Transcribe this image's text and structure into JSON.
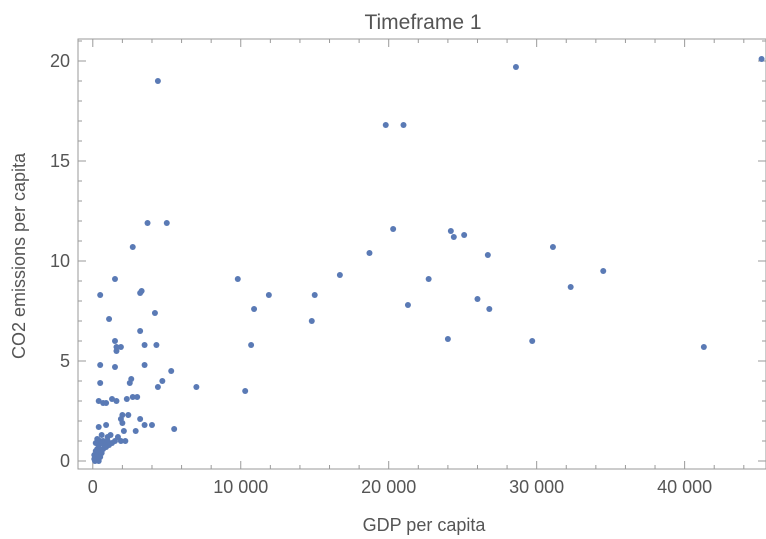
{
  "chart_data": {
    "type": "scatter",
    "title": "Timeframe 1",
    "xlabel": "GDP per capita",
    "ylabel": "CO2 emissions per capita",
    "xlim": [
      -1000,
      45500
    ],
    "ylim": [
      -0.4,
      21.1
    ],
    "x_ticks": [
      0,
      10000,
      20000,
      30000,
      40000
    ],
    "x_tick_labels": [
      "0",
      "10 000",
      "20 000",
      "30 000",
      "40 000"
    ],
    "y_ticks": [
      0,
      5,
      10,
      15,
      20
    ],
    "y_tick_labels": [
      "0",
      "5",
      "10",
      "15",
      "20"
    ],
    "grid": false,
    "marker_color": "#5a7ab5",
    "series": [
      {
        "points": [
          [
            4400,
            19.0
          ],
          [
            28600,
            19.7
          ],
          [
            45200,
            20.1
          ],
          [
            19800,
            16.8
          ],
          [
            21000,
            16.8
          ],
          [
            3700,
            11.9
          ],
          [
            5000,
            11.9
          ],
          [
            20300,
            11.6
          ],
          [
            24200,
            11.5
          ],
          [
            24400,
            11.2
          ],
          [
            25100,
            11.3
          ],
          [
            2700,
            10.7
          ],
          [
            31100,
            10.7
          ],
          [
            18700,
            10.4
          ],
          [
            26700,
            10.3
          ],
          [
            34500,
            9.5
          ],
          [
            16700,
            9.3
          ],
          [
            1500,
            9.1
          ],
          [
            9800,
            9.1
          ],
          [
            22700,
            9.1
          ],
          [
            32300,
            8.7
          ],
          [
            3300,
            8.5
          ],
          [
            3200,
            8.4
          ],
          [
            500,
            8.3
          ],
          [
            11900,
            8.3
          ],
          [
            15000,
            8.3
          ],
          [
            26000,
            8.1
          ],
          [
            21300,
            7.8
          ],
          [
            10900,
            7.6
          ],
          [
            26800,
            7.6
          ],
          [
            4200,
            7.4
          ],
          [
            1100,
            7.1
          ],
          [
            14800,
            7.0
          ],
          [
            3200,
            6.5
          ],
          [
            24000,
            6.1
          ],
          [
            29700,
            6.0
          ],
          [
            1500,
            6.0
          ],
          [
            1600,
            5.7
          ],
          [
            1900,
            5.7
          ],
          [
            10700,
            5.8
          ],
          [
            3500,
            5.8
          ],
          [
            4300,
            5.8
          ],
          [
            41300,
            5.7
          ],
          [
            1600,
            5.5
          ],
          [
            500,
            4.8
          ],
          [
            1500,
            4.7
          ],
          [
            3500,
            4.8
          ],
          [
            5300,
            4.5
          ],
          [
            2600,
            4.1
          ],
          [
            4700,
            4.0
          ],
          [
            2500,
            3.9
          ],
          [
            500,
            3.9
          ],
          [
            4400,
            3.7
          ],
          [
            7000,
            3.7
          ],
          [
            10300,
            3.5
          ],
          [
            3000,
            3.2
          ],
          [
            2700,
            3.2
          ],
          [
            2300,
            3.1
          ],
          [
            1600,
            3.0
          ],
          [
            1300,
            3.1
          ],
          [
            400,
            3.0
          ],
          [
            900,
            2.9
          ],
          [
            700,
            2.9
          ],
          [
            2000,
            2.3
          ],
          [
            2400,
            2.3
          ],
          [
            1900,
            2.1
          ],
          [
            3200,
            2.1
          ],
          [
            2000,
            1.9
          ],
          [
            3500,
            1.8
          ],
          [
            4000,
            1.8
          ],
          [
            5500,
            1.6
          ],
          [
            900,
            1.8
          ],
          [
            400,
            1.7
          ],
          [
            2100,
            1.5
          ],
          [
            2900,
            1.5
          ],
          [
            600,
            1.3
          ],
          [
            1000,
            1.2
          ],
          [
            1200,
            1.3
          ],
          [
            1700,
            1.2
          ],
          [
            1500,
            1.0
          ],
          [
            1900,
            1.0
          ],
          [
            2200,
            1.0
          ],
          [
            300,
            1.1
          ],
          [
            500,
            1.0
          ],
          [
            700,
            1.0
          ],
          [
            1000,
            1.0
          ],
          [
            1300,
            0.9
          ],
          [
            200,
            0.9
          ],
          [
            400,
            0.8
          ],
          [
            600,
            0.9
          ],
          [
            800,
            0.8
          ],
          [
            1100,
            0.8
          ],
          [
            300,
            0.6
          ],
          [
            500,
            0.6
          ],
          [
            700,
            0.6
          ],
          [
            900,
            0.7
          ],
          [
            200,
            0.5
          ],
          [
            400,
            0.4
          ],
          [
            600,
            0.4
          ],
          [
            100,
            0.3
          ],
          [
            300,
            0.3
          ],
          [
            500,
            0.2
          ],
          [
            200,
            0.2
          ],
          [
            100,
            0.1
          ],
          [
            300,
            0.1
          ],
          [
            150,
            0.0
          ],
          [
            400,
            0.0
          ]
        ]
      }
    ]
  }
}
